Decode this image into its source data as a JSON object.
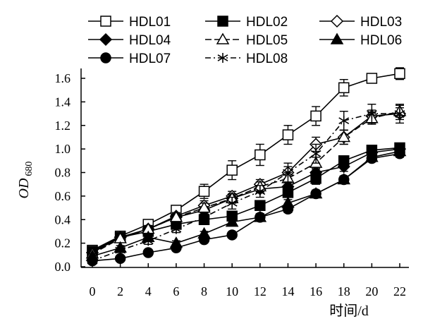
{
  "chart_data": {
    "type": "line",
    "xlabel": "时间/d",
    "ylabel": "OD",
    "ylabel_subscript": "680",
    "x": [
      0,
      2,
      4,
      6,
      8,
      10,
      12,
      14,
      16,
      18,
      20,
      22
    ],
    "xlim": [
      0,
      22
    ],
    "ylim": [
      0,
      1.6
    ],
    "x_ticks": [
      "0",
      "2",
      "4",
      "6",
      "8",
      "10",
      "12",
      "14",
      "16",
      "18",
      "20",
      "22"
    ],
    "y_ticks": [
      "0.0",
      "0.2",
      "0.4",
      "0.6",
      "0.8",
      "1.0",
      "1.2",
      "1.4",
      "1.6"
    ],
    "grid": false,
    "legend_position": "top",
    "series": [
      {
        "name": "HDL01",
        "marker": "open-square",
        "dash": "solid",
        "values": [
          0.14,
          0.26,
          0.36,
          0.48,
          0.64,
          0.82,
          0.95,
          1.12,
          1.28,
          1.52,
          1.6,
          1.64
        ],
        "errors": [
          0.02,
          0.02,
          0.03,
          0.04,
          0.06,
          0.08,
          0.09,
          0.08,
          0.08,
          0.07,
          0.03,
          0.05
        ]
      },
      {
        "name": "HDL02",
        "marker": "filled-square",
        "dash": "solid",
        "values": [
          0.13,
          0.25,
          0.3,
          0.36,
          0.4,
          0.43,
          0.52,
          0.63,
          0.75,
          0.9,
          0.99,
          1.01
        ],
        "errors": [
          0.02,
          0.02,
          0.02,
          0.03,
          0.03,
          0.03,
          0.03,
          0.04,
          0.05,
          0.04,
          0.03,
          0.03
        ]
      },
      {
        "name": "HDL03",
        "marker": "open-diamond",
        "dash": "solid",
        "values": [
          0.12,
          0.25,
          0.32,
          0.43,
          0.52,
          0.6,
          0.7,
          0.8,
          1.04,
          1.1,
          1.28,
          1.3
        ],
        "errors": [
          0.02,
          0.02,
          0.03,
          0.03,
          0.04,
          0.04,
          0.04,
          0.05,
          0.06,
          0.06,
          0.05,
          0.05
        ]
      },
      {
        "name": "HDL04",
        "marker": "filled-diamond",
        "dash": "solid",
        "values": [
          0.12,
          0.25,
          0.32,
          0.42,
          0.48,
          0.58,
          0.66,
          0.68,
          0.8,
          0.85,
          0.97,
          1.0
        ],
        "errors": [
          0.02,
          0.02,
          0.02,
          0.03,
          0.03,
          0.03,
          0.03,
          0.04,
          0.04,
          0.04,
          0.03,
          0.03
        ]
      },
      {
        "name": "HDL05",
        "marker": "open-triangle",
        "dash": "long-dash",
        "values": [
          0.11,
          0.24,
          0.32,
          0.42,
          0.5,
          0.58,
          0.68,
          0.75,
          0.88,
          1.1,
          1.26,
          1.32
        ],
        "errors": [
          0.02,
          0.02,
          0.03,
          0.03,
          0.04,
          0.04,
          0.04,
          0.05,
          0.05,
          0.06,
          0.05,
          0.05
        ]
      },
      {
        "name": "HDL06",
        "marker": "filled-triangle",
        "dash": "solid",
        "values": [
          0.09,
          0.16,
          0.25,
          0.2,
          0.28,
          0.38,
          0.42,
          0.54,
          0.62,
          0.74,
          0.93,
          0.98
        ],
        "errors": [
          0.02,
          0.02,
          0.02,
          0.02,
          0.02,
          0.03,
          0.03,
          0.03,
          0.03,
          0.03,
          0.03,
          0.03
        ]
      },
      {
        "name": "HDL07",
        "marker": "filled-circle",
        "dash": "solid",
        "values": [
          0.05,
          0.07,
          0.12,
          0.16,
          0.23,
          0.27,
          0.42,
          0.49,
          0.62,
          0.74,
          0.92,
          0.96
        ],
        "errors": [
          0.01,
          0.01,
          0.02,
          0.02,
          0.02,
          0.02,
          0.03,
          0.03,
          0.03,
          0.03,
          0.03,
          0.03
        ]
      },
      {
        "name": "HDL08",
        "marker": "asterisk",
        "dash": "dash-dot",
        "values": [
          0.05,
          0.14,
          0.22,
          0.32,
          0.42,
          0.54,
          0.64,
          0.8,
          0.96,
          1.24,
          1.3,
          1.3
        ],
        "errors": [
          0.02,
          0.02,
          0.03,
          0.03,
          0.04,
          0.05,
          0.05,
          0.08,
          0.08,
          0.08,
          0.08,
          0.08
        ]
      }
    ]
  }
}
